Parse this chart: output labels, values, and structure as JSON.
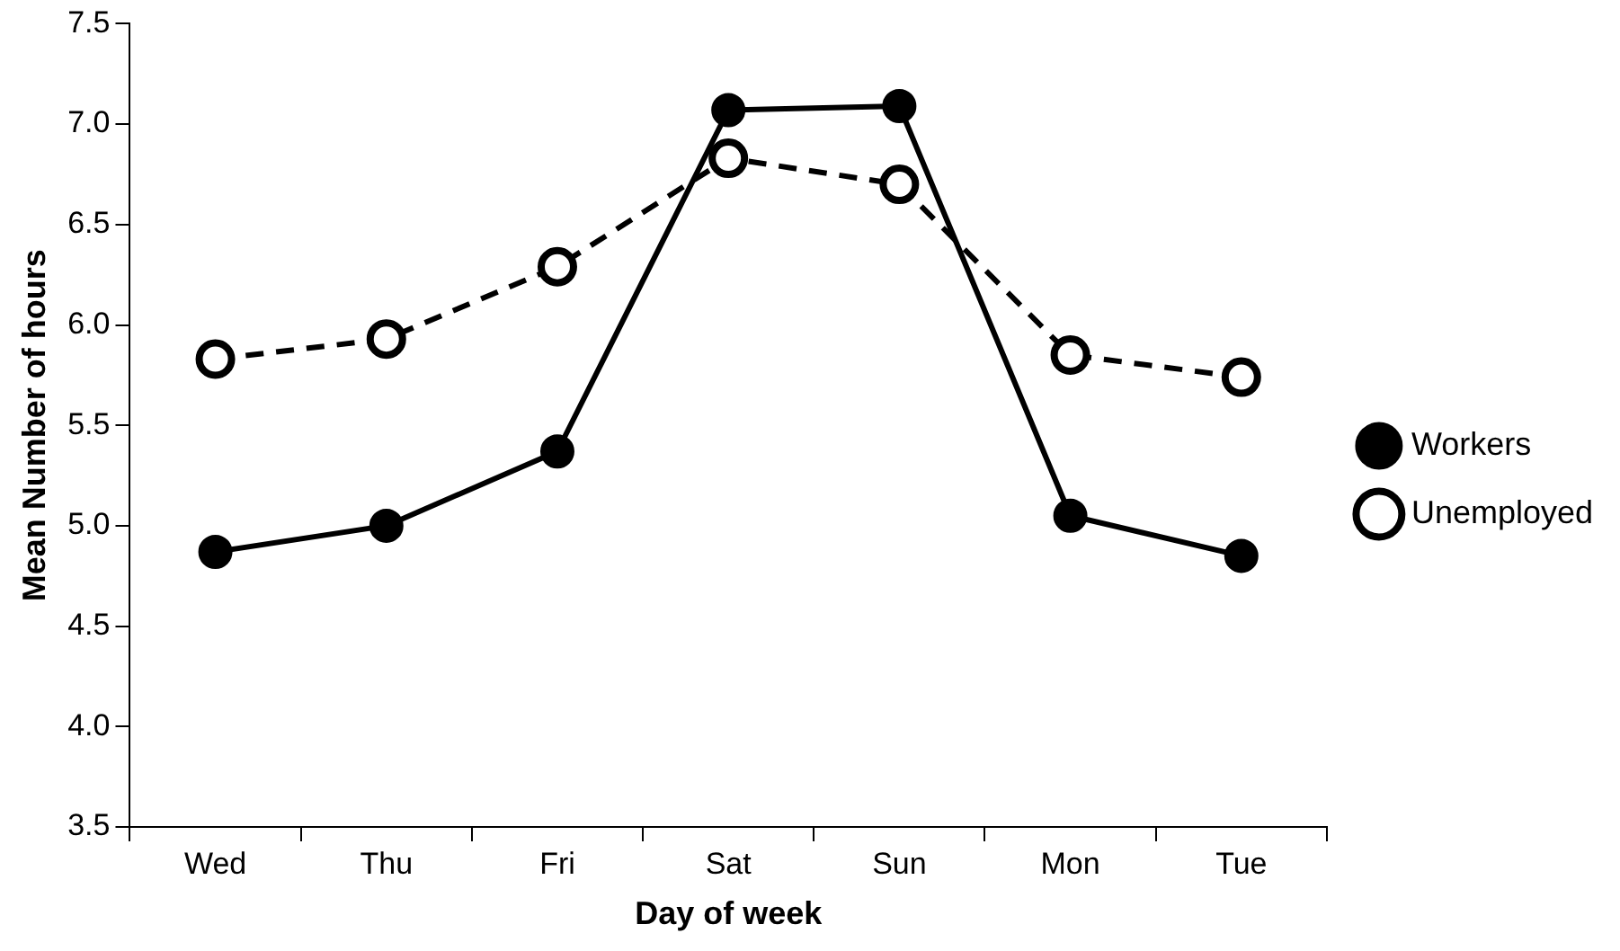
{
  "chart_data": {
    "type": "line",
    "xlabel": "Day of week",
    "ylabel": "Mean Number of hours",
    "categories": [
      "Wed",
      "Thu",
      "Fri",
      "Sat",
      "Sun",
      "Mon",
      "Tue"
    ],
    "series": [
      {
        "name": "Workers",
        "color": "#000000",
        "values": [
          4.87,
          5.0,
          5.37,
          7.07,
          7.09,
          5.05,
          4.85
        ],
        "marker": "circle",
        "line_style": "solid"
      },
      {
        "name": "Unemployed",
        "color": "#000000",
        "values": [
          5.83,
          5.93,
          6.29,
          6.83,
          6.7,
          5.85,
          5.74
        ],
        "marker": "circle",
        "line_style": "dashed"
      }
    ],
    "ylim": [
      3.5,
      7.5
    ],
    "yticks": [
      {
        "value": 3.5,
        "label": "3.5"
      },
      {
        "value": 4,
        "label": "4.0"
      },
      {
        "value": 4.5,
        "label": "4.5"
      },
      {
        "value": 5,
        "label": "5.0"
      },
      {
        "value": 5.5,
        "label": "5.5"
      },
      {
        "value": 6,
        "label": "6.0"
      },
      {
        "value": 6.5,
        "label": "6.5"
      },
      {
        "value": 7,
        "label": "7.0"
      },
      {
        "value": 7.5,
        "label": "7.5"
      }
    ],
    "grid": false,
    "legend": "right"
  }
}
